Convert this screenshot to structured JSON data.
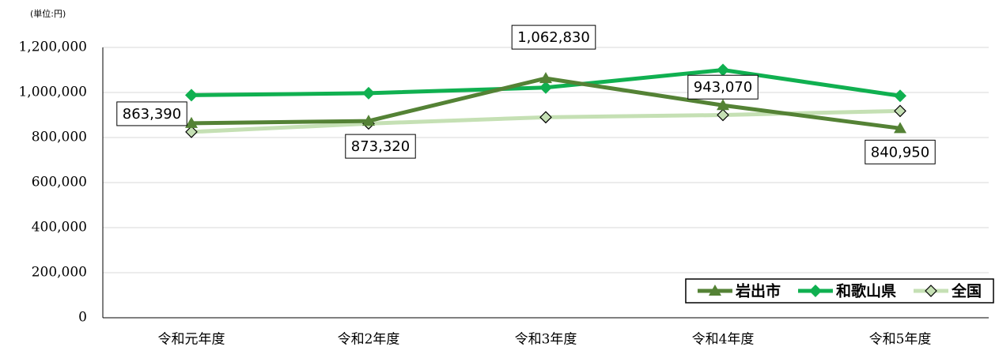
{
  "chart_data": {
    "type": "line",
    "y_label": "(単位:円)",
    "categories": [
      "令和元年度",
      "令和2年度",
      "令和3年度",
      "令和4年度",
      "令和5年度"
    ],
    "series": [
      {
        "name": "岩出市",
        "color": "#548235",
        "marker": "triangle",
        "values": [
          863390,
          873320,
          1062830,
          943070,
          840950
        ],
        "value_labels": [
          "863,390",
          "873,320",
          "1,062,830",
          "943,070",
          "840,950"
        ]
      },
      {
        "name": "和歌山県",
        "color": "#10b050",
        "marker": "diamond",
        "values": [
          988000,
          997000,
          1022000,
          1100000,
          985000
        ]
      },
      {
        "name": "全国",
        "color": "#c5e0b4",
        "marker": "diamond-open",
        "values": [
          825000,
          862000,
          890000,
          900000,
          918000
        ]
      }
    ],
    "ylim": [
      0,
      1200000
    ],
    "yticks": [
      0,
      {
        "value": 200000,
        "label": "200,000"
      },
      {
        "value": 400000,
        "label": "400,000"
      },
      {
        "value": 600000,
        "label": "600,000"
      },
      {
        "value": 800000,
        "label": "800,000"
      },
      {
        "value": 1000000,
        "label": "1,000,000"
      },
      {
        "value": 1200000,
        "label": "1,200,000"
      }
    ],
    "grid": true,
    "legend": "lower right"
  }
}
